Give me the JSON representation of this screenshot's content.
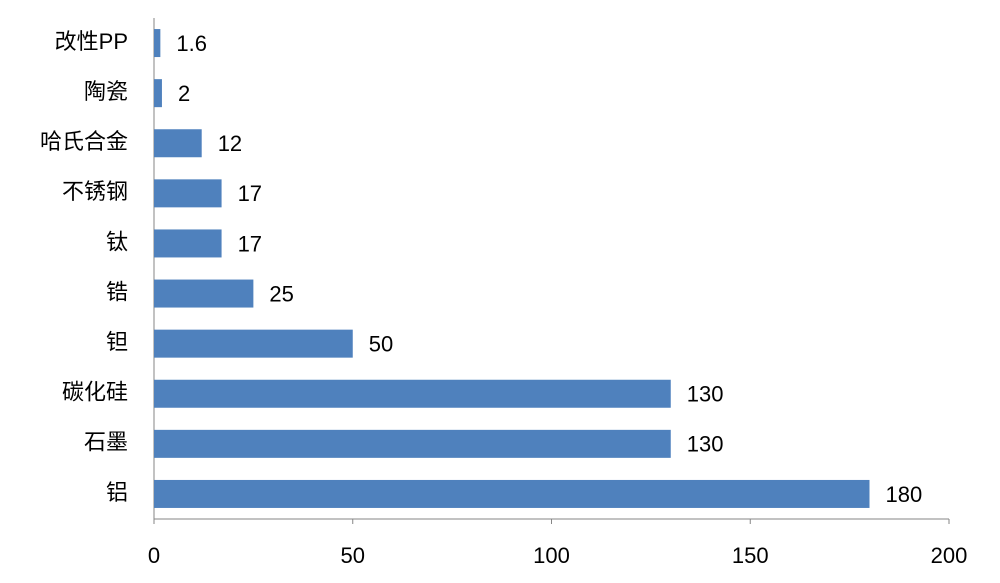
{
  "chart_data": {
    "type": "bar",
    "orientation": "horizontal",
    "categories": [
      "改性PP",
      "陶瓷",
      "哈氏合金",
      "不锈钢",
      "钛",
      "锆",
      "钽",
      "碳化硅",
      "石墨",
      "铝"
    ],
    "values": [
      1.6,
      2,
      12,
      17,
      17,
      25,
      50,
      130,
      130,
      180
    ],
    "color": "#4f81bd",
    "xlim": [
      0,
      200
    ],
    "xticks": [
      0,
      50,
      100,
      150,
      200
    ],
    "grid": false
  }
}
